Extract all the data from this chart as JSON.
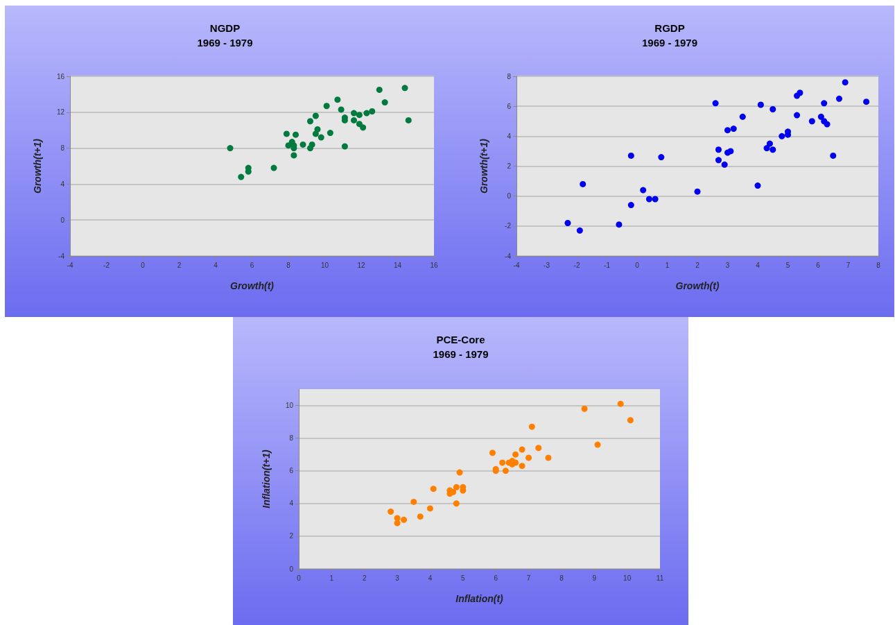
{
  "chart_data": [
    {
      "type": "scatter",
      "title": "NGDP",
      "subtitle": "1969 - 1979",
      "xlabel": "Growth(t)",
      "ylabel": "Growth(t+1)",
      "x": [
        4.8,
        5.4,
        5.8,
        5.8,
        7.2,
        7.9,
        8.4,
        8.0,
        8.2,
        8.3,
        8.3,
        8.3,
        8.8,
        9.2,
        9.5,
        9.2,
        9.3,
        9.6,
        9.5,
        9.8,
        10.3,
        10.1,
        10.7,
        10.9,
        11.1,
        11.1,
        11.1,
        11.6,
        11.9,
        11.6,
        11.9,
        12.1,
        12.3,
        12.6,
        13.0,
        13.3,
        14.4,
        14.6
      ],
      "values": [
        8.0,
        4.8,
        5.4,
        5.8,
        5.8,
        9.6,
        9.5,
        8.3,
        8.7,
        8.3,
        8.0,
        7.2,
        8.4,
        11.0,
        11.6,
        8.0,
        8.4,
        10.1,
        9.6,
        9.2,
        9.7,
        12.7,
        13.4,
        12.3,
        11.4,
        11.1,
        8.2,
        11.9,
        11.7,
        11.1,
        10.7,
        10.3,
        11.9,
        12.1,
        14.5,
        13.1,
        14.7,
        11.1
      ],
      "color": "#007a3d",
      "marker": "circle",
      "xlim": [
        -4,
        16
      ],
      "xticks": [
        -4,
        -2,
        0,
        2,
        4,
        6,
        8,
        10,
        12,
        14,
        16
      ],
      "ylim": [
        -4,
        16
      ],
      "yticks": [
        -4,
        0,
        4,
        8,
        12,
        16
      ],
      "grid": "y"
    },
    {
      "type": "scatter",
      "title": "RGDP",
      "subtitle": "1969 - 1979",
      "xlabel": "Growth(t)",
      "ylabel": "Growth(t+1)",
      "x": [
        -2.3,
        -1.9,
        -1.8,
        -0.6,
        -0.2,
        -0.2,
        0.2,
        0.4,
        0.6,
        0.8,
        2.0,
        2.6,
        2.7,
        2.7,
        2.9,
        3.0,
        3.0,
        3.1,
        3.2,
        3.5,
        4.0,
        4.1,
        4.3,
        4.4,
        4.5,
        4.5,
        4.8,
        5.0,
        5.0,
        5.3,
        5.4,
        5.3,
        5.8,
        6.1,
        6.2,
        6.2,
        6.3,
        6.5,
        6.7,
        6.9,
        7.6
      ],
      "values": [
        -1.8,
        -2.3,
        0.8,
        -1.9,
        -0.6,
        2.7,
        0.4,
        -0.2,
        -0.2,
        2.6,
        0.3,
        6.2,
        2.4,
        3.1,
        2.1,
        4.4,
        2.9,
        3.0,
        4.5,
        5.3,
        0.7,
        6.1,
        3.2,
        3.5,
        3.1,
        5.8,
        4.0,
        4.3,
        4.1,
        6.7,
        6.9,
        5.4,
        5.0,
        5.3,
        6.2,
        5.0,
        4.8,
        2.7,
        6.5,
        7.6,
        6.3
      ],
      "color": "#0000f0",
      "marker": "circle",
      "xlim": [
        -4,
        8
      ],
      "xticks": [
        -4,
        -3,
        -2,
        -1,
        0,
        1,
        2,
        3,
        4,
        5,
        6,
        7,
        8
      ],
      "ylim": [
        -4,
        8
      ],
      "yticks": [
        -4,
        -2,
        0,
        2,
        4,
        6,
        8
      ],
      "grid": "y"
    },
    {
      "type": "scatter",
      "title": "PCE-Core",
      "subtitle": "1969 - 1979",
      "xlabel": "Inflation(t)",
      "ylabel": "Inflation(t+1)",
      "x": [
        2.8,
        3.0,
        3.0,
        3.2,
        3.5,
        3.7,
        4.0,
        4.1,
        4.6,
        4.6,
        4.7,
        4.8,
        4.8,
        4.9,
        5.0,
        5.0,
        5.9,
        6.0,
        6.0,
        6.2,
        6.3,
        6.4,
        6.5,
        6.5,
        6.6,
        6.6,
        6.8,
        6.8,
        7.0,
        7.1,
        7.3,
        7.6,
        8.7,
        9.1,
        9.8,
        10.1
      ],
      "values": [
        3.5,
        3.1,
        2.8,
        3.0,
        4.1,
        3.2,
        3.7,
        4.9,
        4.8,
        4.6,
        4.7,
        5.0,
        4.0,
        5.9,
        5.0,
        4.8,
        7.1,
        6.1,
        6.0,
        6.5,
        6.0,
        6.5,
        6.4,
        6.6,
        6.5,
        7.0,
        7.3,
        6.3,
        6.8,
        8.7,
        7.4,
        6.8,
        9.8,
        7.6,
        10.1,
        9.1
      ],
      "color": "#ff8000",
      "marker": "circle",
      "xlim": [
        0,
        11
      ],
      "xticks": [
        0,
        1,
        2,
        3,
        4,
        5,
        6,
        7,
        8,
        9,
        10,
        11
      ],
      "ylim": [
        0,
        11
      ],
      "yticks": [
        0,
        2,
        4,
        6,
        8,
        10
      ],
      "grid": "y"
    }
  ]
}
